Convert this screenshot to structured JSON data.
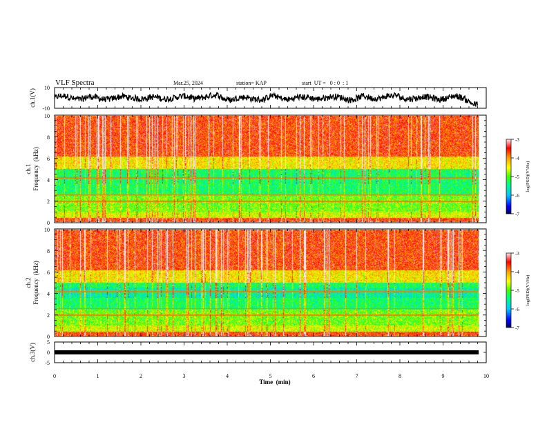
{
  "header": {
    "title": "VLF Spectra",
    "date": "Mar.25, 2024",
    "station": "station= KAP",
    "start": "start  UT =   0 : 0  : 1"
  },
  "chart_data": [
    {
      "type": "line",
      "name": "ch1-waveform",
      "ylabel": "ch.1(V)",
      "ylim": [
        -10,
        10
      ],
      "yticks": [
        "10",
        "-10"
      ],
      "xlim": [
        0,
        10
      ],
      "trace_note": "noisy amplitude trace mostly between +5 and -5 V, drifting downward near 9.8 min"
    },
    {
      "type": "heatmap",
      "name": "ch1-spectrogram",
      "ylabel": "ch.1\nFrequency  (kHz)",
      "ylabel_lines": [
        "ch.1",
        "Frequency  (kHz)"
      ],
      "ylim": [
        0,
        10
      ],
      "yticks": [
        "0",
        "2",
        "4",
        "6",
        "8",
        "10"
      ],
      "xlim": [
        0,
        10
      ],
      "data_end_min": 9.8,
      "colorbar": {
        "label": "log(PSD)(V²/Hz)",
        "ticks": [
          "-3",
          "-4",
          "-5",
          "-6",
          "-7"
        ],
        "range": [
          -7,
          -3
        ]
      }
    },
    {
      "type": "heatmap",
      "name": "ch2-spectrogram",
      "ylabel": "ch.2\nFrequency  (kHz)",
      "ylabel_lines": [
        "ch.2",
        "Frequency  (kHz)"
      ],
      "ylim": [
        0,
        10
      ],
      "yticks": [
        "0",
        "2",
        "4",
        "6",
        "8",
        "10"
      ],
      "xlim": [
        0,
        10
      ],
      "data_end_min": 9.8,
      "colorbar": {
        "label": "log(PSD)(V²/Hz)",
        "ticks": [
          "-3",
          "-4",
          "-5",
          "-6",
          "-7"
        ],
        "range": [
          -7,
          -3
        ]
      }
    },
    {
      "type": "line",
      "name": "ch3-waveform",
      "ylabel": "ch.3(V)",
      "ylim": [
        -5,
        5
      ],
      "yticks": [
        "5",
        "0",
        "-5"
      ],
      "xlim": [
        0,
        10
      ],
      "trace_note": "flat saturated band near -1 V"
    }
  ],
  "xaxis": {
    "label": "Time  (min)",
    "ticks": [
      "0",
      "1",
      "2",
      "3",
      "4",
      "5",
      "6",
      "7",
      "8",
      "9",
      "10"
    ]
  },
  "colors": {
    "cmap": [
      "#000080",
      "#0000ff",
      "#00c8ff",
      "#00ff80",
      "#40ff00",
      "#c8ff00",
      "#ffff00",
      "#ffa000",
      "#ff3000",
      "#ff0000",
      "#ffe0e0"
    ]
  }
}
